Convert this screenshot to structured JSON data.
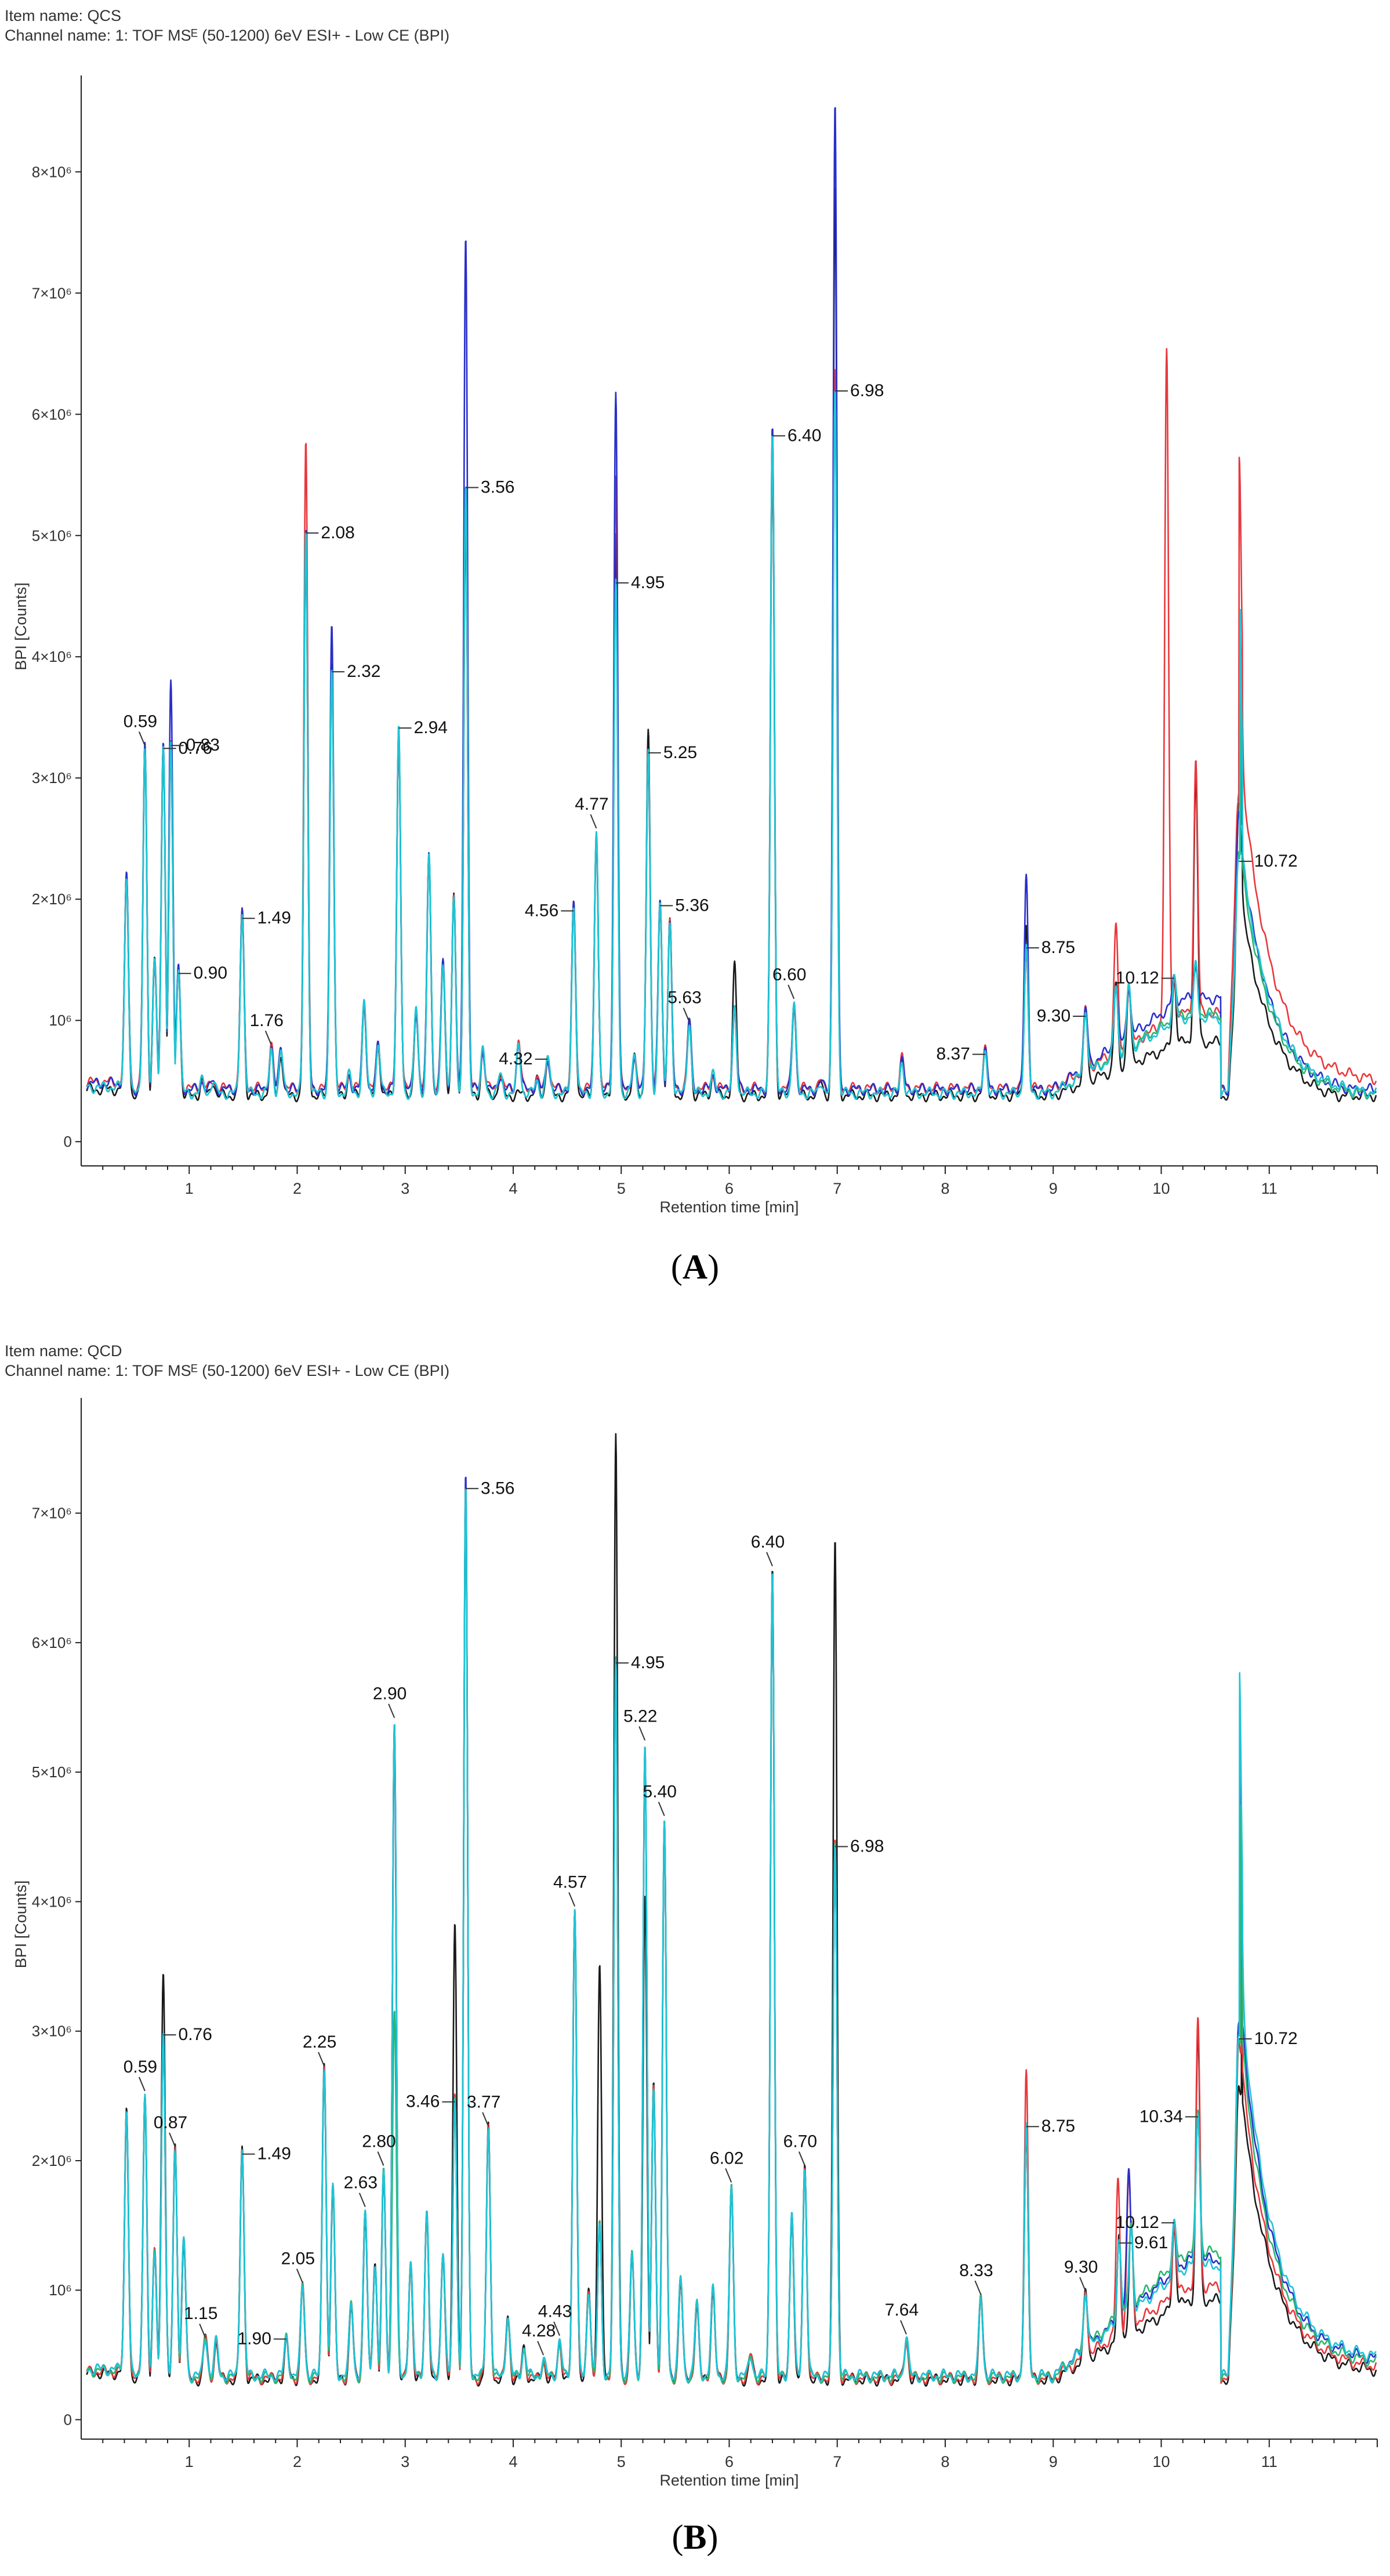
{
  "colors": {
    "black": "#1a1a1a",
    "red": "#e8383d",
    "blue": "#2a2fc9",
    "green": "#2cb56f",
    "cyan": "#1fc4d6"
  },
  "chart_data": [
    {
      "type": "line",
      "panel_label": "A",
      "item_name": "Item name: QCS",
      "channel_name": "Channel name: 1: TOF MSᴱ (50-1200) 6eV ESI+ - Low CE (BPI)",
      "xlabel": "Retention time [min]",
      "ylabel": "BPI [Counts]",
      "xlim": [
        0,
        12
      ],
      "ylim": [
        -200000,
        8700000
      ],
      "x_ticks": [
        1,
        2,
        3,
        4,
        5,
        6,
        7,
        8,
        9,
        10,
        11
      ],
      "y_ticks": [
        0,
        1000000,
        2000000,
        3000000,
        4000000,
        5000000,
        6000000,
        7000000,
        8000000
      ],
      "y_tick_labels": [
        "0",
        "10⁶",
        "2×10⁶",
        "3×10⁶",
        "4×10⁶",
        "5×10⁶",
        "6×10⁶",
        "7×10⁶",
        "8×10⁶"
      ],
      "series": [
        {
          "name": "black",
          "color": "#1a1a1a",
          "baseline_shift": -0.02,
          "tail_gain": 0.82,
          "hump_gain": 0.75,
          "peaks": [
            [
              2.08,
              4.9
            ],
            [
              2.32,
              4.0
            ],
            [
              3.56,
              5.2
            ],
            [
              4.95,
              5.0
            ],
            [
              5.25,
              3.4
            ],
            [
              6.4,
              5.7
            ],
            [
              6.98,
              7.9
            ],
            [
              8.75,
              1.8
            ],
            [
              10.72,
              2.9
            ],
            [
              10.32,
              3.0
            ],
            [
              6.05,
              1.45
            ]
          ]
        },
        {
          "name": "red",
          "color": "#e8383d",
          "baseline_shift": 0.04,
          "tail_gain": 1.28,
          "hump_gain": 1.0,
          "peaks": [
            [
              2.08,
              5.75
            ],
            [
              3.56,
              5.3
            ],
            [
              4.95,
              5.5
            ],
            [
              6.98,
              6.4
            ],
            [
              10.05,
              6.5
            ],
            [
              10.32,
              3.15
            ],
            [
              10.72,
              2.8
            ],
            [
              9.58,
              1.8
            ]
          ]
        },
        {
          "name": "blue",
          "color": "#2a2fc9",
          "baseline_shift": 0.03,
          "tail_gain": 1.0,
          "hump_gain": 1.18,
          "peaks": [
            [
              0.83,
              3.85
            ],
            [
              2.32,
              4.3
            ],
            [
              3.56,
              7.5
            ],
            [
              4.95,
              6.2
            ],
            [
              6.98,
              8.6
            ],
            [
              8.75,
              2.2
            ],
            [
              10.72,
              2.7
            ]
          ]
        },
        {
          "name": "green",
          "color": "#2cb56f",
          "baseline_shift": 0.0,
          "tail_gain": 0.95,
          "hump_gain": 1.05,
          "peaks": [
            [
              10.72,
              2.4
            ]
          ]
        },
        {
          "name": "cyan",
          "color": "#1fc4d6",
          "baseline_shift": 0.0,
          "tail_gain": 1.0,
          "hump_gain": 1.0,
          "peaks": []
        }
      ],
      "base_peaks": [
        [
          0.42,
          2.2
        ],
        [
          0.59,
          3.25
        ],
        [
          0.68,
          1.5
        ],
        [
          0.76,
          3.3
        ],
        [
          0.83,
          3.3
        ],
        [
          0.9,
          1.45
        ],
        [
          1.12,
          0.5
        ],
        [
          1.22,
          0.5
        ],
        [
          1.49,
          1.9
        ],
        [
          1.76,
          0.35
        ],
        [
          1.85,
          0.35
        ],
        [
          2.08,
          5.05
        ],
        [
          2.32,
          3.9
        ],
        [
          2.48,
          0.55
        ],
        [
          2.62,
          1.15
        ],
        [
          2.75,
          0.8
        ],
        [
          2.94,
          3.4
        ],
        [
          3.1,
          1.1
        ],
        [
          3.22,
          2.4
        ],
        [
          3.35,
          1.5
        ],
        [
          3.45,
          2.0
        ],
        [
          3.56,
          5.4
        ],
        [
          3.72,
          0.75
        ],
        [
          3.88,
          0.55
        ],
        [
          4.05,
          0.4
        ],
        [
          4.22,
          0.5
        ],
        [
          4.32,
          0.7
        ],
        [
          4.56,
          1.95
        ],
        [
          4.77,
          2.55
        ],
        [
          4.95,
          4.6
        ],
        [
          5.12,
          0.7
        ],
        [
          5.25,
          3.2
        ],
        [
          5.36,
          2.0
        ],
        [
          5.45,
          1.8
        ],
        [
          5.63,
          1.0
        ],
        [
          5.85,
          0.55
        ],
        [
          6.05,
          1.1
        ],
        [
          6.4,
          5.9
        ],
        [
          6.6,
          1.15
        ],
        [
          6.85,
          0.5
        ],
        [
          6.98,
          6.25
        ],
        [
          7.6,
          0.25
        ],
        [
          8.37,
          0.75
        ],
        [
          8.75,
          1.6
        ],
        [
          9.3,
          1.1
        ],
        [
          9.58,
          1.3
        ],
        [
          9.7,
          1.3
        ],
        [
          10.12,
          1.35
        ],
        [
          10.32,
          1.45
        ],
        [
          10.72,
          2.35
        ]
      ],
      "baseline_level": 0.4,
      "hump": {
        "start": 9.0,
        "center": 10.2,
        "end": 10.55,
        "level": 0.72
      },
      "tail": {
        "from": 10.62,
        "peak_x": 10.75,
        "peak": 2.35,
        "end_level": 0.38
      },
      "annotations": [
        {
          "x": 0.59,
          "label": "0.59",
          "side": "above"
        },
        {
          "x": 0.76,
          "label": "0.76",
          "side": "right"
        },
        {
          "x": 0.83,
          "label": "0.83",
          "side": "right"
        },
        {
          "x": 0.9,
          "label": "0.90",
          "side": "right"
        },
        {
          "x": 1.49,
          "label": "1.49",
          "side": "right"
        },
        {
          "x": 1.76,
          "label": "1.76",
          "side": "above"
        },
        {
          "x": 2.08,
          "label": "2.08",
          "side": "right"
        },
        {
          "x": 2.32,
          "label": "2.32",
          "side": "right"
        },
        {
          "x": 2.94,
          "label": "2.94",
          "side": "right"
        },
        {
          "x": 3.56,
          "label": "3.56",
          "side": "right"
        },
        {
          "x": 4.32,
          "label": "4.32",
          "side": "left"
        },
        {
          "x": 4.56,
          "label": "4.56",
          "side": "left"
        },
        {
          "x": 4.77,
          "label": "4.77",
          "side": "above"
        },
        {
          "x": 4.95,
          "label": "4.95",
          "side": "right"
        },
        {
          "x": 5.25,
          "label": "5.25",
          "side": "right"
        },
        {
          "x": 5.36,
          "label": "5.36",
          "side": "right"
        },
        {
          "x": 5.63,
          "label": "5.63",
          "side": "above"
        },
        {
          "x": 6.4,
          "label": "6.40",
          "side": "right"
        },
        {
          "x": 6.6,
          "label": "6.60",
          "side": "above"
        },
        {
          "x": 6.98,
          "label": "6.98",
          "side": "right"
        },
        {
          "x": 8.37,
          "label": "8.37",
          "side": "left"
        },
        {
          "x": 8.75,
          "label": "8.75",
          "side": "right"
        },
        {
          "x": 9.3,
          "label": "9.30",
          "side": "left"
        },
        {
          "x": 10.12,
          "label": "10.12",
          "side": "left"
        },
        {
          "x": 10.72,
          "label": "10.72",
          "side": "right"
        }
      ]
    },
    {
      "type": "line",
      "panel_label": "B",
      "item_name": "Item name: QCD",
      "channel_name": "Channel name: 1: TOF MSᴱ (50-1200) 6eV ESI+ - Low CE (BPI)",
      "xlabel": "Retention time [min]",
      "ylabel": "BPI [Counts]",
      "xlim": [
        0,
        12
      ],
      "ylim": [
        -150000,
        7800000
      ],
      "x_ticks": [
        1,
        2,
        3,
        4,
        5,
        6,
        7,
        8,
        9,
        10,
        11
      ],
      "y_ticks": [
        0,
        1000000,
        2000000,
        3000000,
        4000000,
        5000000,
        6000000,
        7000000
      ],
      "y_tick_labels": [
        "0",
        "10⁶",
        "2×10⁶",
        "3×10⁶",
        "4×10⁶",
        "5×10⁶",
        "6×10⁶",
        "7×10⁶"
      ],
      "series": [
        {
          "name": "black",
          "color": "#1a1a1a",
          "baseline_shift": -0.02,
          "tail_gain": 0.85,
          "hump_gain": 0.75,
          "peaks": [
            [
              0.76,
              3.5
            ],
            [
              3.46,
              3.8
            ],
            [
              4.8,
              3.5
            ],
            [
              4.95,
              7.6
            ],
            [
              5.22,
              4.1
            ],
            [
              6.98,
              6.8
            ],
            [
              10.34,
              3.0
            ],
            [
              10.72,
              2.6
            ]
          ]
        },
        {
          "name": "red",
          "color": "#e8383d",
          "baseline_shift": -0.01,
          "tail_gain": 0.92,
          "hump_gain": 0.85,
          "peaks": [
            [
              8.75,
              2.7
            ],
            [
              10.34,
              3.1
            ],
            [
              9.7,
              1.9
            ],
            [
              9.6,
              1.85
            ]
          ]
        },
        {
          "name": "blue",
          "color": "#2a2fc9",
          "baseline_shift": 0.01,
          "tail_gain": 1.05,
          "hump_gain": 1.05,
          "peaks": [
            [
              3.56,
              7.3
            ],
            [
              9.7,
              1.95
            ],
            [
              10.72,
              3.05
            ]
          ]
        },
        {
          "name": "green",
          "color": "#2cb56f",
          "baseline_shift": 0.0,
          "tail_gain": 1.0,
          "hump_gain": 1.12,
          "peaks": [
            [
              2.9,
              3.2
            ]
          ]
        },
        {
          "name": "cyan",
          "color": "#1fc4d6",
          "baseline_shift": 0.01,
          "tail_gain": 1.1,
          "hump_gain": 1.0,
          "peaks": []
        }
      ],
      "base_peaks": [
        [
          0.42,
          2.4
        ],
        [
          0.59,
          2.5
        ],
        [
          0.68,
          1.3
        ],
        [
          0.76,
          3.0
        ],
        [
          0.87,
          2.1
        ],
        [
          0.95,
          1.4
        ],
        [
          1.15,
          0.65
        ],
        [
          1.25,
          0.6
        ],
        [
          1.49,
          2.1
        ],
        [
          1.9,
          0.3
        ],
        [
          2.05,
          1.05
        ],
        [
          2.25,
          2.75
        ],
        [
          2.33,
          1.8
        ],
        [
          2.5,
          0.9
        ],
        [
          2.63,
          1.6
        ],
        [
          2.72,
          1.2
        ],
        [
          2.8,
          1.9
        ],
        [
          2.9,
          5.4
        ],
        [
          3.05,
          1.2
        ],
        [
          3.2,
          1.6
        ],
        [
          3.35,
          1.3
        ],
        [
          3.46,
          2.5
        ],
        [
          3.56,
          7.2
        ],
        [
          3.77,
          2.25
        ],
        [
          3.95,
          0.8
        ],
        [
          4.1,
          0.55
        ],
        [
          4.28,
          0.45
        ],
        [
          4.43,
          0.6
        ],
        [
          4.57,
          3.95
        ],
        [
          4.7,
          1.0
        ],
        [
          4.8,
          1.5
        ],
        [
          4.95,
          5.85
        ],
        [
          5.1,
          1.3
        ],
        [
          5.22,
          5.2
        ],
        [
          5.3,
          2.6
        ],
        [
          5.4,
          4.6
        ],
        [
          5.55,
          1.1
        ],
        [
          5.7,
          0.9
        ],
        [
          5.85,
          1.0
        ],
        [
          6.02,
          1.8
        ],
        [
          6.2,
          0.5
        ],
        [
          6.4,
          6.6
        ],
        [
          6.58,
          1.6
        ],
        [
          6.7,
          1.95
        ],
        [
          6.98,
          4.5
        ],
        [
          7.64,
          0.3
        ],
        [
          8.33,
          0.95
        ],
        [
          8.75,
          2.25
        ],
        [
          9.3,
          1.0
        ],
        [
          9.61,
          1.4
        ],
        [
          9.72,
          1.5
        ],
        [
          10.12,
          1.5
        ],
        [
          10.34,
          2.4
        ],
        [
          10.72,
          2.95
        ]
      ],
      "baseline_level": 0.33,
      "hump": {
        "start": 9.0,
        "center": 10.25,
        "end": 10.55,
        "level": 0.95
      },
      "tail": {
        "from": 10.62,
        "peak_x": 10.75,
        "peak": 2.9,
        "end_level": 0.42
      },
      "annotations": [
        {
          "x": 0.59,
          "label": "0.59",
          "side": "above"
        },
        {
          "x": 0.76,
          "label": "0.76",
          "side": "right"
        },
        {
          "x": 0.87,
          "label": "0.87",
          "side": "above"
        },
        {
          "x": 1.15,
          "label": "1.15",
          "side": "above"
        },
        {
          "x": 1.49,
          "label": "1.49",
          "side": "right"
        },
        {
          "x": 1.9,
          "label": "1.90",
          "side": "left"
        },
        {
          "x": 2.05,
          "label": "2.05",
          "side": "above"
        },
        {
          "x": 2.25,
          "label": "2.25",
          "side": "above"
        },
        {
          "x": 2.63,
          "label": "2.63",
          "side": "above"
        },
        {
          "x": 2.8,
          "label": "2.80",
          "side": "above"
        },
        {
          "x": 2.9,
          "label": "2.90",
          "side": "above"
        },
        {
          "x": 3.46,
          "label": "3.46",
          "side": "left"
        },
        {
          "x": 3.56,
          "label": "3.56",
          "side": "right"
        },
        {
          "x": 3.77,
          "label": "3.77",
          "side": "above"
        },
        {
          "x": 4.28,
          "label": "4.28",
          "side": "above"
        },
        {
          "x": 4.43,
          "label": "4.43",
          "side": "above"
        },
        {
          "x": 4.57,
          "label": "4.57",
          "side": "above"
        },
        {
          "x": 4.95,
          "label": "4.95",
          "side": "right"
        },
        {
          "x": 5.22,
          "label": "5.22",
          "side": "above"
        },
        {
          "x": 5.4,
          "label": "5.40",
          "side": "above"
        },
        {
          "x": 6.02,
          "label": "6.02",
          "side": "above"
        },
        {
          "x": 6.4,
          "label": "6.40",
          "side": "above"
        },
        {
          "x": 6.7,
          "label": "6.70",
          "side": "above"
        },
        {
          "x": 6.98,
          "label": "6.98",
          "side": "right"
        },
        {
          "x": 7.64,
          "label": "7.64",
          "side": "above"
        },
        {
          "x": 8.33,
          "label": "8.33",
          "side": "above"
        },
        {
          "x": 8.75,
          "label": "8.75",
          "side": "right"
        },
        {
          "x": 9.3,
          "label": "9.30",
          "side": "above"
        },
        {
          "x": 9.61,
          "label": "9.61",
          "side": "right"
        },
        {
          "x": 10.12,
          "label": "10.12",
          "side": "left"
        },
        {
          "x": 10.34,
          "label": "10.34",
          "side": "left"
        },
        {
          "x": 10.72,
          "label": "10.72",
          "side": "right"
        }
      ]
    }
  ]
}
